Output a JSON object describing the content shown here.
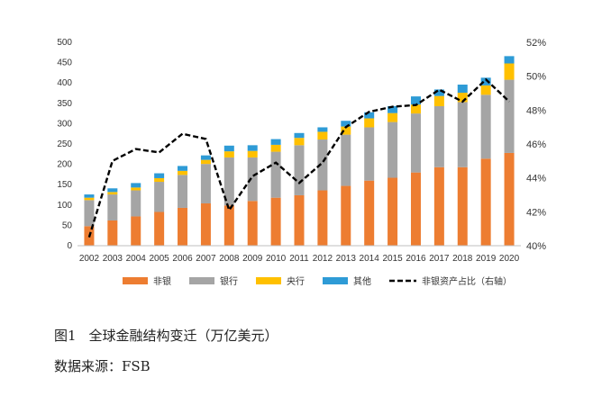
{
  "caption": {
    "number": "图1",
    "text": "全球金融结构变迁（万亿美元）"
  },
  "source": "数据来源：FSB",
  "chart_data": {
    "type": "bar",
    "stacked": true,
    "categories": [
      "2002",
      "2003",
      "2004",
      "2005",
      "2006",
      "2007",
      "2008",
      "2009",
      "2010",
      "2011",
      "2012",
      "2013",
      "2014",
      "2015",
      "2016",
      "2017",
      "2018",
      "2019",
      "2020"
    ],
    "series": [
      {
        "name": "非银",
        "color": "#ED7D31",
        "values": [
          48,
          62,
          72,
          83,
          93,
          104,
          99,
          110,
          118,
          124,
          136,
          147,
          160,
          167,
          180,
          193,
          193,
          214,
          228
        ]
      },
      {
        "name": "银行",
        "color": "#A5A5A5",
        "values": [
          64,
          64,
          64,
          74,
          81,
          97,
          118,
          107,
          113,
          123,
          125,
          126,
          131,
          137,
          145,
          150,
          160,
          157,
          180
        ]
      },
      {
        "name": "央行",
        "color": "#FFC000",
        "values": [
          6,
          6,
          7,
          9,
          10,
          10,
          15,
          16,
          17,
          18,
          19,
          20,
          22,
          22,
          22,
          25,
          23,
          23,
          40
        ]
      },
      {
        "name": "其他",
        "color": "#2E9BD6",
        "values": [
          8,
          9,
          11,
          12,
          12,
          11,
          14,
          14,
          14,
          12,
          11,
          14,
          15,
          17,
          20,
          16,
          20,
          19,
          18
        ]
      }
    ],
    "line": {
      "name": "非银资产占比（右轴）",
      "color": "#000000",
      "axis": "right",
      "values": [
        40.5,
        45.0,
        45.7,
        45.5,
        46.6,
        46.3,
        42.1,
        44.1,
        44.9,
        43.7,
        44.9,
        47.0,
        47.9,
        48.2,
        48.3,
        49.2,
        48.5,
        49.8,
        48.5
      ]
    },
    "y_left": {
      "min": 0,
      "max": 500,
      "step": 50
    },
    "y_right": {
      "min": 40,
      "max": 52,
      "step": 2,
      "unit": "%"
    },
    "legend_position": "bottom",
    "grid": false
  }
}
